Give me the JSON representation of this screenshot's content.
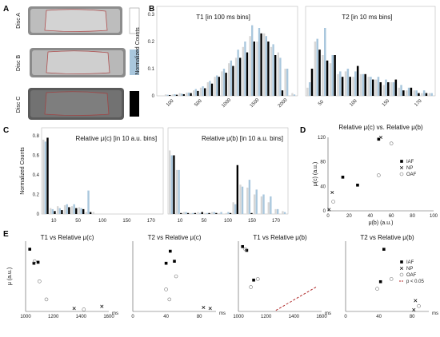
{
  "colors": {
    "black": "#000000",
    "blue": "#a9c7dd",
    "gray": "#c8c8c8",
    "trend": "#b02a2a"
  },
  "panels": {
    "A": "A",
    "B": "B",
    "C": "C",
    "D": "D",
    "E": "E"
  },
  "panelA": {
    "discs": [
      "Disc A",
      "Disc B",
      "Disc C"
    ]
  },
  "axes": {
    "normalized_counts": "Normalized Counts",
    "mu_au": "μ (a.u.)",
    "ms": "ms"
  },
  "chart_data": [
    {
      "id": "B1",
      "type": "bar",
      "title": "T1 [in 100 ms bins]",
      "ylabel": "Normalized Counts",
      "ylim": [
        0,
        0.3
      ],
      "yticks": [
        0,
        0.1,
        0.2,
        0.3
      ],
      "xticks": [
        "100",
        "500",
        "1000",
        "1500",
        "2000"
      ],
      "series": [
        {
          "name": "Disc A",
          "color": "white",
          "values": [
            0,
            0.005,
            0.005,
            0.01,
            0.012,
            0.02,
            0.03,
            0.05,
            0.07,
            0.09,
            0.12,
            0.14,
            0.18,
            0.22,
            0.2,
            0.23,
            0.18,
            0.16,
            0.1,
            0.01
          ]
        },
        {
          "name": "Disc B",
          "color": "blue",
          "values": [
            0,
            0.004,
            0.006,
            0.008,
            0.012,
            0.025,
            0.035,
            0.055,
            0.075,
            0.1,
            0.13,
            0.17,
            0.2,
            0.26,
            0.25,
            0.22,
            0.19,
            0.14,
            0.1,
            0.005
          ]
        },
        {
          "name": "Disc C",
          "color": "black",
          "values": [
            0,
            0.003,
            0.004,
            0.006,
            0.01,
            0.018,
            0.028,
            0.045,
            0.07,
            0.085,
            0.11,
            0.14,
            0.16,
            0.2,
            0.23,
            0.2,
            0.15,
            0.02,
            0,
            0
          ]
        }
      ]
    },
    {
      "id": "B2",
      "type": "bar",
      "title": "T2 [in 10 ms bins]",
      "ylim": [
        0,
        0.3
      ],
      "xticks": [
        "50",
        "100",
        "150",
        "170"
      ],
      "series": [
        {
          "name": "Disc A",
          "color": "white",
          "values": [
            0.03,
            0.2,
            0.15,
            0.12,
            0.08,
            0.09,
            0.07,
            0.08,
            0.07,
            0.06,
            0.04,
            0.05,
            0.03,
            0.02,
            0.02,
            0.01,
            0.01
          ]
        },
        {
          "name": "Disc B",
          "color": "blue",
          "values": [
            0.05,
            0.21,
            0.25,
            0.15,
            0.09,
            0.1,
            0.09,
            0.08,
            0.07,
            0.07,
            0.06,
            0.05,
            0.04,
            0.03,
            0.02,
            0.02,
            0.01
          ]
        },
        {
          "name": "Disc C",
          "color": "black",
          "values": [
            0.1,
            0.17,
            0.13,
            0.15,
            0.07,
            0.07,
            0.11,
            0.08,
            0.06,
            0.05,
            0.05,
            0.06,
            0.02,
            0.03,
            0.01,
            0.01,
            0
          ]
        }
      ]
    },
    {
      "id": "C1",
      "type": "bar",
      "title": "Relative μ(c) [in 10 a.u. bins]",
      "ylabel": "Normalized Counts",
      "ylim": [
        0,
        0.8
      ],
      "yticks": [
        0,
        0.2,
        0.4,
        0.6,
        0.8
      ],
      "xticks": [
        "10",
        "50",
        "100",
        "150",
        "170"
      ],
      "series": [
        {
          "name": "Disc A",
          "color": "white",
          "values": [
            0.76,
            0.06,
            0.08,
            0.09,
            0.08,
            0.07,
            0.02,
            0.02,
            0,
            0,
            0,
            0,
            0,
            0,
            0,
            0,
            0
          ]
        },
        {
          "name": "Disc B",
          "color": "blue",
          "values": [
            0.74,
            0.05,
            0.06,
            0.1,
            0.1,
            0.06,
            0.24,
            0,
            0,
            0,
            0,
            0,
            0,
            0,
            0,
            0,
            0
          ]
        },
        {
          "name": "Disc C",
          "color": "black",
          "values": [
            0.78,
            0.03,
            0.04,
            0.07,
            0.06,
            0.05,
            0.02,
            0,
            0,
            0,
            0,
            0,
            0,
            0,
            0,
            0,
            0
          ]
        }
      ]
    },
    {
      "id": "C2",
      "type": "bar",
      "title": "Relative μ(b) [in 10 a.u. bins]",
      "ylim": [
        0,
        0.8
      ],
      "xticks": [
        "10",
        "50",
        "100",
        "150",
        "170"
      ],
      "series": [
        {
          "name": "Disc A",
          "color": "white",
          "values": [
            0.65,
            0.45,
            0.02,
            0.01,
            0.02,
            0.01,
            0.02,
            0.01,
            0.01,
            0.12,
            0.3,
            0.27,
            0.2,
            0.18,
            0.12,
            0.05,
            0.03
          ]
        },
        {
          "name": "Disc B",
          "color": "blue",
          "values": [
            0.6,
            0.45,
            0.02,
            0.01,
            0.01,
            0.01,
            0.02,
            0.02,
            0.02,
            0.1,
            0.28,
            0.35,
            0.25,
            0.2,
            0.18,
            0.05,
            0.02
          ]
        },
        {
          "name": "Disc C",
          "color": "black",
          "values": [
            0.6,
            0.01,
            0.01,
            0.01,
            0.02,
            0.01,
            0.01,
            0,
            0.01,
            0.5,
            0,
            0.01,
            0,
            0,
            0,
            0,
            0
          ]
        }
      ]
    },
    {
      "id": "D",
      "type": "scatter",
      "title": "Relative μ(c) vs. Relative μ(b)",
      "xlabel": "μ(b) (a.u.)",
      "ylabel": "μ(c) (a.u.)",
      "xlim": [
        0,
        100
      ],
      "ylim": [
        0,
        120
      ],
      "xticks": [
        0,
        20,
        40,
        60,
        80,
        100
      ],
      "yticks": [
        0,
        40,
        80,
        120
      ],
      "legend": [
        "IAF",
        "NP",
        "OAF"
      ],
      "series": [
        {
          "name": "IAF",
          "marker": "square",
          "points": [
            [
              14,
              55
            ],
            [
              28,
              42
            ],
            [
              48,
              117
            ]
          ]
        },
        {
          "name": "NP",
          "marker": "x",
          "points": [
            [
              1,
              2
            ],
            [
              4,
              30
            ],
            [
              50,
              120
            ]
          ]
        },
        {
          "name": "OAF",
          "marker": "circle",
          "points": [
            [
              5,
              15
            ],
            [
              48,
              58
            ],
            [
              60,
              110
            ]
          ]
        }
      ]
    },
    {
      "id": "E1",
      "type": "scatter",
      "title": "T1 vs Relative μ(c)",
      "ylabel": "μ (a.u.)",
      "xlabel": "ms",
      "xlim": [
        1000,
        1600
      ],
      "ylim": [
        0,
        70
      ],
      "xticks": [
        1000,
        1200,
        1400,
        1600
      ],
      "series": [
        {
          "name": "IAF",
          "marker": "square",
          "points": [
            [
              1030,
              62
            ],
            [
              1060,
              48
            ],
            [
              1090,
              49
            ]
          ]
        },
        {
          "name": "NP",
          "marker": "x",
          "points": [
            [
              1350,
              3
            ],
            [
              1550,
              5
            ]
          ]
        },
        {
          "name": "OAF",
          "marker": "circle",
          "points": [
            [
              1065,
              50
            ],
            [
              1100,
              30
            ],
            [
              1150,
              12
            ],
            [
              1420,
              2
            ]
          ]
        }
      ]
    },
    {
      "id": "E2",
      "type": "scatter",
      "title": "T2 vs Relative μ(c)",
      "xlabel": "ms",
      "xlim": [
        0,
        100
      ],
      "ylim": [
        0,
        70
      ],
      "xticks": [
        0,
        40,
        80
      ],
      "series": [
        {
          "name": "IAF",
          "marker": "square",
          "points": [
            [
              40,
              48
            ],
            [
              45,
              60
            ],
            [
              50,
              50
            ]
          ]
        },
        {
          "name": "NP",
          "marker": "x",
          "points": [
            [
              85,
              4
            ],
            [
              93,
              3
            ]
          ]
        },
        {
          "name": "OAF",
          "marker": "circle",
          "points": [
            [
              40,
              22
            ],
            [
              44,
              12
            ],
            [
              52,
              35
            ]
          ]
        }
      ]
    },
    {
      "id": "E3",
      "type": "scatter",
      "title": "T1 vs Relative μ(b)",
      "xlabel": "ms",
      "xlim": [
        1000,
        1600
      ],
      "ylim": [
        0,
        130
      ],
      "xticks": [
        1000,
        1200,
        1400,
        1600
      ],
      "trend": {
        "from": [
          1270,
          2
        ],
        "to": [
          1560,
          45
        ]
      },
      "series": [
        {
          "name": "IAF",
          "marker": "square",
          "points": [
            [
              1030,
              120
            ],
            [
              1060,
              113
            ],
            [
              1110,
              58
            ]
          ]
        },
        {
          "name": "NP",
          "marker": "x",
          "points": []
        },
        {
          "name": "OAF",
          "marker": "circle",
          "points": [
            [
              1050,
              115
            ],
            [
              1090,
              45
            ],
            [
              1140,
              60
            ]
          ]
        }
      ]
    },
    {
      "id": "E4",
      "type": "scatter",
      "title": "T2 vs Relative μ(b)",
      "xlabel": "ms",
      "xlim": [
        0,
        100
      ],
      "ylim": [
        0,
        130
      ],
      "xticks": [
        0,
        40,
        80
      ],
      "legend": [
        "IAF",
        "NP",
        "OAF",
        "p < 0.05"
      ],
      "series": [
        {
          "name": "IAF",
          "marker": "square",
          "points": [
            [
              42,
              55
            ],
            [
              46,
              115
            ]
          ]
        },
        {
          "name": "NP",
          "marker": "x",
          "points": [
            [
              82,
              3
            ],
            [
              84,
              20
            ]
          ]
        },
        {
          "name": "OAF",
          "marker": "circle",
          "points": [
            [
              38,
              42
            ],
            [
              55,
              60
            ],
            [
              88,
              10
            ]
          ]
        }
      ]
    }
  ]
}
